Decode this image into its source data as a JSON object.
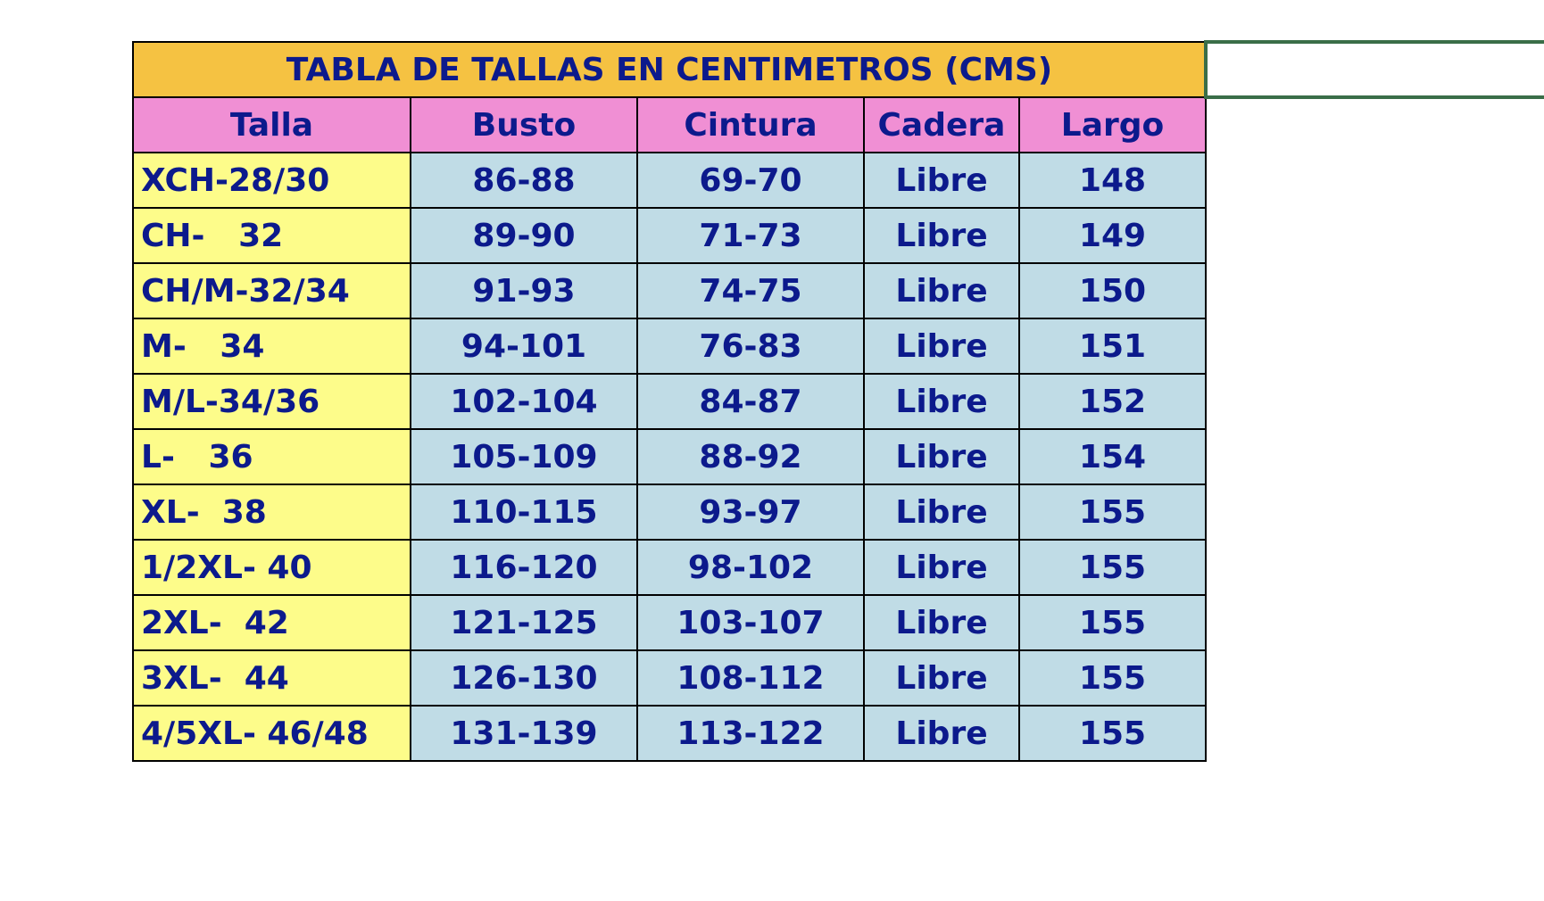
{
  "title": "TABLA DE TALLAS EN CENTIMETROS (CMS)",
  "columns": [
    "Talla",
    "Busto",
    "Cintura",
    "Cadera",
    "Largo"
  ],
  "rows": [
    [
      "XCH-28/30",
      "86-88",
      "69-70",
      "Libre",
      "148"
    ],
    [
      "CH-   32",
      "89-90",
      "71-73",
      "Libre",
      "149"
    ],
    [
      "CH/M-32/34",
      "91-93",
      "74-75",
      "Libre",
      "150"
    ],
    [
      "M-   34",
      "94-101",
      "76-83",
      "Libre",
      "151"
    ],
    [
      "M/L-34/36",
      "102-104",
      "84-87",
      "Libre",
      "152"
    ],
    [
      "L-   36",
      "105-109",
      "88-92",
      "Libre",
      "154"
    ],
    [
      "XL-  38",
      "110-115",
      "93-97",
      "Libre",
      "155"
    ],
    [
      "1/2XL- 40",
      "116-120",
      "98-102",
      "Libre",
      "155"
    ],
    [
      "2XL-  42",
      "121-125",
      "103-107",
      "Libre",
      "155"
    ],
    [
      "3XL-  44",
      "126-130",
      "108-112",
      "Libre",
      "155"
    ],
    [
      "4/5XL- 46/48",
      "131-139",
      "113-122",
      "Libre",
      "155"
    ]
  ],
  "colors": {
    "title_bg": "#f5c242",
    "header_bg": "#f08fd4",
    "talla_bg": "#fdfc8a",
    "value_bg": "#c0dce6",
    "text": "#0c1a8c",
    "selection": "#3a6e48"
  }
}
